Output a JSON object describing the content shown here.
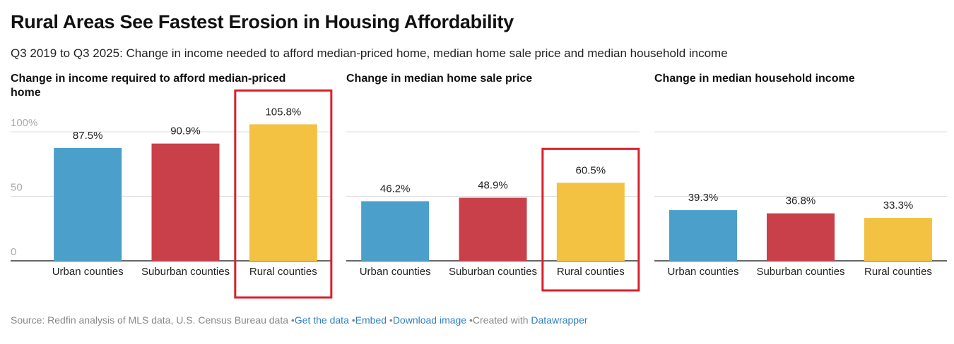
{
  "title": "Rural Areas See Fastest Erosion in Housing Affordability",
  "subtitle": "Q3 2019 to Q3 2025: Change in income needed to afford median-priced home, median home sale price and median household income",
  "chart_data": [
    {
      "type": "bar",
      "title": "Change in income required to afford median-priced home",
      "categories": [
        "Urban counties",
        "Suburban counties",
        "Rural counties"
      ],
      "values": [
        87.5,
        90.9,
        105.8
      ],
      "value_labels": [
        "87.5%",
        "90.9%",
        "105.8%"
      ],
      "colors": [
        "#4b9fcb",
        "#c9404a",
        "#f4c242"
      ],
      "ylim": [
        0,
        100
      ],
      "yticks": [
        0,
        50,
        {
          "value": 100,
          "label": "100%"
        }
      ],
      "show_tick_labels": true,
      "grid": true,
      "highlight": 2
    },
    {
      "type": "bar",
      "title": "Change in median home sale price",
      "categories": [
        "Urban counties",
        "Suburban counties",
        "Rural counties"
      ],
      "values": [
        46.2,
        48.9,
        60.5
      ],
      "value_labels": [
        "46.2%",
        "48.9%",
        "60.5%"
      ],
      "colors": [
        "#4b9fcb",
        "#c9404a",
        "#f4c242"
      ],
      "ylim": [
        0,
        100
      ],
      "yticks": [
        0,
        50,
        100
      ],
      "show_tick_labels": false,
      "grid": true,
      "highlight": 2
    },
    {
      "type": "bar",
      "title": "Change in median household income",
      "categories": [
        "Urban counties",
        "Suburban counties",
        "Rural counties"
      ],
      "values": [
        39.3,
        36.8,
        33.3
      ],
      "value_labels": [
        "39.3%",
        "36.8%",
        "33.3%"
      ],
      "colors": [
        "#4b9fcb",
        "#c9404a",
        "#f4c242"
      ],
      "ylim": [
        0,
        100
      ],
      "yticks": [
        0,
        50,
        100
      ],
      "show_tick_labels": false,
      "grid": true,
      "highlight": null
    }
  ],
  "footer": {
    "source": "Source: Redfin analysis of MLS data, U.S. Census Bureau data",
    "links": [
      "Get the data",
      "Embed",
      "Download image"
    ],
    "credit": "Created with",
    "credit_link": "Datawrapper"
  }
}
